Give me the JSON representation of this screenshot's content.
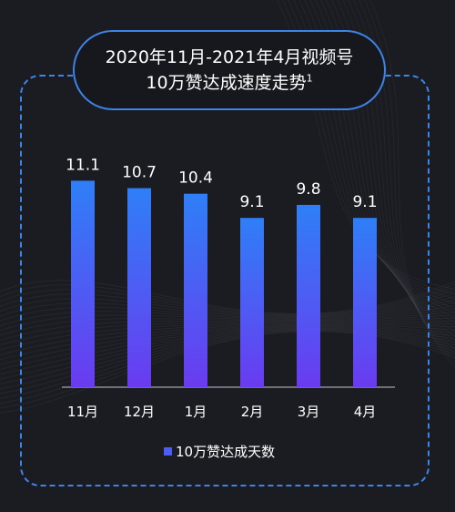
{
  "title": {
    "line1": "2020年11月-2021年4月视频号",
    "line2": "10万赞达成速度走势",
    "footnote": "1"
  },
  "colors": {
    "background": "#1b1c22",
    "frame": "#3c84e6",
    "bar_top": "#2f7ff7",
    "bar_bottom": "#6a3bf0",
    "axis": "#8a8d96",
    "text": "#ffffff"
  },
  "chart_data": {
    "type": "bar",
    "categories": [
      "11月",
      "12月",
      "1月",
      "2月",
      "3月",
      "4月"
    ],
    "series": [
      {
        "name": "10万赞达成天数",
        "values": [
          11.1,
          10.7,
          10.4,
          9.1,
          9.8,
          9.1
        ]
      }
    ],
    "ylim": [
      0,
      12
    ],
    "grid": false,
    "legend": "bottom-center",
    "data_labels": [
      "11.1",
      "10.7",
      "10.4",
      "9.1",
      "9.8",
      "9.1"
    ]
  }
}
